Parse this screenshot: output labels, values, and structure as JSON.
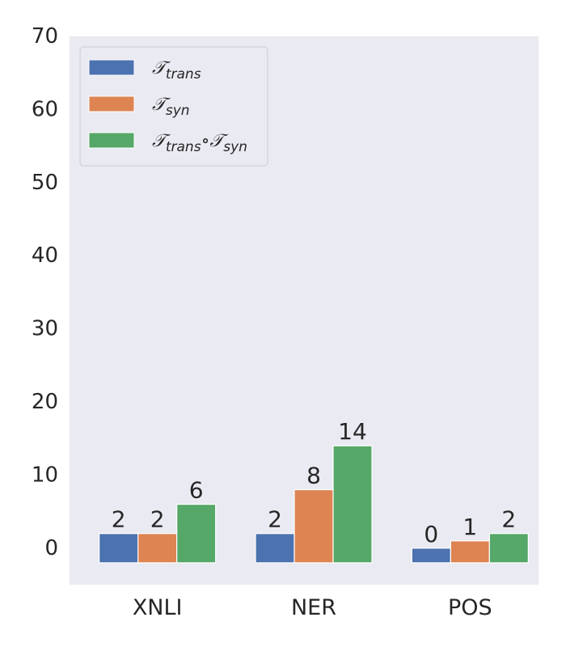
{
  "chart_data": {
    "type": "bar",
    "categories": [
      "XNLI",
      "NER",
      "POS"
    ],
    "series": [
      {
        "name": "T_trans",
        "label": {
          "main": "𝒯",
          "sub": "trans"
        },
        "color": "#4c72b0",
        "values": [
          2,
          2,
          0
        ]
      },
      {
        "name": "T_syn",
        "label": {
          "main": "𝒯",
          "sub": "syn"
        },
        "color": "#dd8452",
        "values": [
          2,
          8,
          1
        ]
      },
      {
        "name": "T_trans∘T_syn",
        "label": {
          "main": "𝒯",
          "sub": "trans",
          "op": "∘",
          "main2": "𝒯",
          "sub2": "syn"
        },
        "color": "#55a868",
        "values": [
          6,
          14,
          2
        ]
      }
    ],
    "data_labels": [
      [
        "2",
        "2",
        "0"
      ],
      [
        "2",
        "8",
        "1"
      ],
      [
        "6",
        "14",
        "2"
      ]
    ],
    "bar_base": -2,
    "ylim": [
      -5,
      70
    ],
    "yticks": [
      0,
      10,
      20,
      30,
      40,
      50,
      60,
      70
    ],
    "ytick_labels": [
      "0",
      "10",
      "20",
      "30",
      "40",
      "50",
      "60",
      "70"
    ],
    "xlabel": "",
    "ylabel": "",
    "title": "",
    "grid": false,
    "legend_position": "top-left",
    "background_color": "#eaeaf2"
  }
}
